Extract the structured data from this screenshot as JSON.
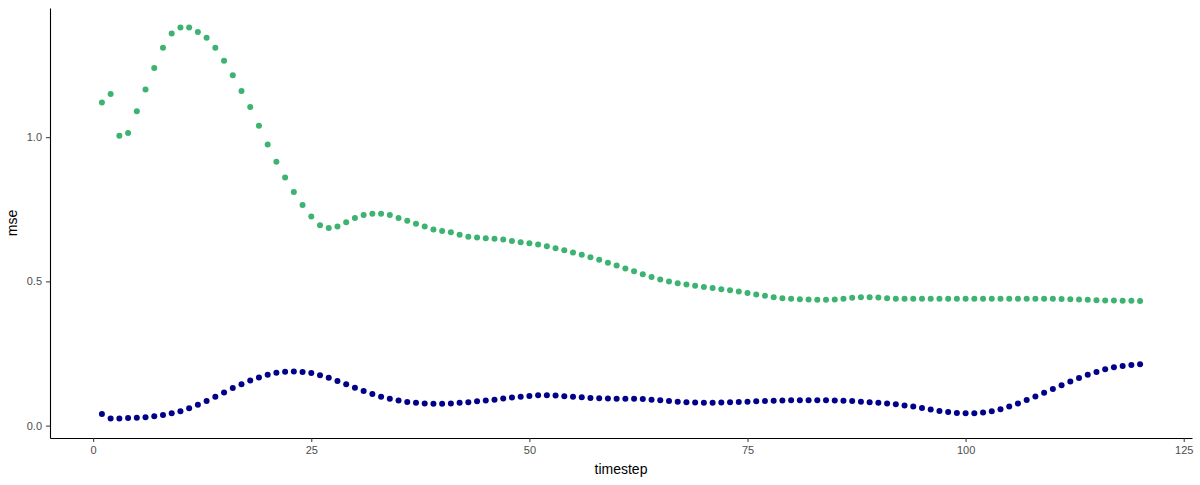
{
  "chart_data": {
    "type": "scatter",
    "x_label": "timestep",
    "y_label": "mse",
    "x": [
      1,
      2,
      3,
      4,
      5,
      6,
      7,
      8,
      9,
      10,
      11,
      12,
      13,
      14,
      15,
      16,
      17,
      18,
      19,
      20,
      21,
      22,
      23,
      24,
      25,
      26,
      27,
      28,
      29,
      30,
      31,
      32,
      33,
      34,
      35,
      36,
      37,
      38,
      39,
      40,
      41,
      42,
      43,
      44,
      45,
      46,
      47,
      48,
      49,
      50,
      51,
      52,
      53,
      54,
      55,
      56,
      57,
      58,
      59,
      60,
      61,
      62,
      63,
      64,
      65,
      66,
      67,
      68,
      69,
      70,
      71,
      72,
      73,
      74,
      75,
      76,
      77,
      78,
      79,
      80,
      81,
      82,
      83,
      84,
      85,
      86,
      87,
      88,
      89,
      90,
      91,
      92,
      93,
      94,
      95,
      96,
      97,
      98,
      99,
      100,
      101,
      102,
      103,
      104,
      105,
      106,
      107,
      108,
      109,
      110,
      111,
      112,
      113,
      114,
      115,
      116,
      117,
      118,
      119,
      120
    ],
    "series": [
      {
        "color": "#3cb371",
        "marker": "circle",
        "values": [
          1.12,
          1.15,
          1.005,
          1.015,
          1.09,
          1.165,
          1.24,
          1.31,
          1.36,
          1.38,
          1.38,
          1.365,
          1.345,
          1.31,
          1.265,
          1.215,
          1.16,
          1.105,
          1.04,
          0.975,
          0.915,
          0.86,
          0.81,
          0.765,
          0.725,
          0.695,
          0.685,
          0.69,
          0.705,
          0.72,
          0.73,
          0.735,
          0.735,
          0.73,
          0.72,
          0.71,
          0.7,
          0.69,
          0.68,
          0.675,
          0.67,
          0.662,
          0.655,
          0.652,
          0.65,
          0.648,
          0.645,
          0.64,
          0.636,
          0.632,
          0.628,
          0.622,
          0.615,
          0.608,
          0.6,
          0.592,
          0.584,
          0.575,
          0.565,
          0.555,
          0.545,
          0.535,
          0.525,
          0.515,
          0.507,
          0.5,
          0.494,
          0.489,
          0.485,
          0.481,
          0.477,
          0.473,
          0.469,
          0.465,
          0.46,
          0.455,
          0.45,
          0.445,
          0.442,
          0.44,
          0.438,
          0.437,
          0.436,
          0.436,
          0.437,
          0.44,
          0.443,
          0.445,
          0.445,
          0.444,
          0.442,
          0.44,
          0.44,
          0.44,
          0.44,
          0.44,
          0.44,
          0.44,
          0.44,
          0.44,
          0.44,
          0.44,
          0.44,
          0.44,
          0.44,
          0.44,
          0.44,
          0.44,
          0.44,
          0.44,
          0.439,
          0.438,
          0.437,
          0.436,
          0.435,
          0.434,
          0.434,
          0.433,
          0.433,
          0.432
        ]
      },
      {
        "color": "#00008b",
        "marker": "circle",
        "values": [
          0.04,
          0.025,
          0.025,
          0.026,
          0.027,
          0.029,
          0.032,
          0.037,
          0.043,
          0.05,
          0.06,
          0.072,
          0.085,
          0.1,
          0.115,
          0.13,
          0.143,
          0.156,
          0.167,
          0.176,
          0.183,
          0.187,
          0.188,
          0.186,
          0.182,
          0.175,
          0.166,
          0.155,
          0.143,
          0.131,
          0.12,
          0.11,
          0.1,
          0.093,
          0.087,
          0.082,
          0.079,
          0.077,
          0.076,
          0.076,
          0.077,
          0.079,
          0.081,
          0.084,
          0.087,
          0.09,
          0.094,
          0.097,
          0.1,
          0.103,
          0.105,
          0.105,
          0.104,
          0.102,
          0.1,
          0.098,
          0.096,
          0.095,
          0.094,
          0.093,
          0.093,
          0.093,
          0.092,
          0.09,
          0.088,
          0.085,
          0.083,
          0.081,
          0.08,
          0.079,
          0.079,
          0.08,
          0.081,
          0.082,
          0.083,
          0.084,
          0.085,
          0.086,
          0.087,
          0.088,
          0.088,
          0.088,
          0.088,
          0.088,
          0.087,
          0.086,
          0.085,
          0.083,
          0.081,
          0.079,
          0.077,
          0.074,
          0.07,
          0.066,
          0.061,
          0.056,
          0.051,
          0.047,
          0.044,
          0.043,
          0.043,
          0.045,
          0.05,
          0.057,
          0.066,
          0.077,
          0.089,
          0.101,
          0.114,
          0.127,
          0.14,
          0.153,
          0.165,
          0.176,
          0.186,
          0.195,
          0.202,
          0.207,
          0.21,
          0.213
        ]
      }
    ],
    "xlim": [
      -4.95,
      125.95
    ],
    "xticks": [
      0,
      25,
      50,
      75,
      100,
      125
    ],
    "ylim": [
      -0.043,
      1.448
    ],
    "yticks": [
      {
        "value": 0,
        "label": "0.0"
      },
      0.5,
      {
        "value": 1,
        "label": "1.0"
      }
    ],
    "grid": false
  }
}
